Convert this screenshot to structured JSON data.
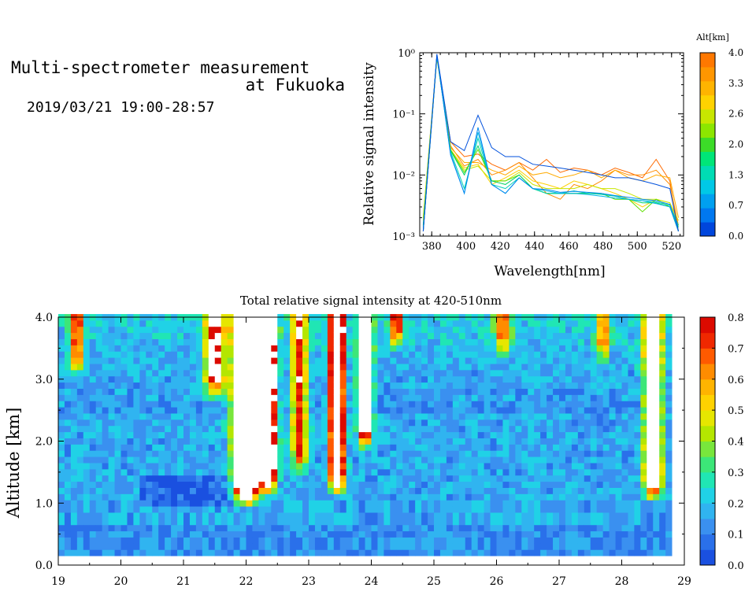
{
  "header": {
    "title_line1": "Multi-spectrometer measurement",
    "title_line2": "at Fukuoka",
    "subtitle": "2019/03/21 19:00-28:57"
  },
  "chart_data": [
    {
      "type": "line",
      "title": "",
      "xlabel": "Wavelength[nm]",
      "ylabel": "Relative signal intensity",
      "xlim": [
        373,
        527
      ],
      "ylim": [
        0.001,
        1
      ],
      "yscale": "log",
      "x": [
        375,
        383,
        391,
        399,
        407,
        415,
        423,
        431,
        439,
        447,
        455,
        463,
        471,
        479,
        487,
        495,
        503,
        511,
        519,
        524
      ],
      "xticks": [
        "380",
        "400",
        "420",
        "440",
        "460",
        "480",
        "500",
        "520"
      ],
      "yticks": [
        "10⁻³",
        "10⁻²",
        "10⁻¹",
        "10⁰"
      ],
      "series": [
        {
          "color": "#ff6a00",
          "values": [
            0.0012,
            0.9,
            0.035,
            0.02,
            0.022,
            0.015,
            0.012,
            0.016,
            0.012,
            0.018,
            0.011,
            0.013,
            0.012,
            0.01,
            0.013,
            0.011,
            0.009,
            0.018,
            0.008,
            0.0012
          ]
        },
        {
          "color": "#ff8c00",
          "values": [
            0.0015,
            0.85,
            0.03,
            0.014,
            0.018,
            0.01,
            0.012,
            0.016,
            0.009,
            0.005,
            0.004,
            0.007,
            0.006,
            0.008,
            0.012,
            0.01,
            0.01,
            0.012,
            0.007,
            0.0015
          ]
        },
        {
          "color": "#ffaa00",
          "values": [
            0.002,
            0.88,
            0.028,
            0.016,
            0.016,
            0.012,
            0.01,
            0.014,
            0.01,
            0.011,
            0.009,
            0.01,
            0.012,
            0.009,
            0.012,
            0.009,
            0.008,
            0.01,
            0.009,
            0.002
          ]
        },
        {
          "color": "#ffd000",
          "values": [
            0.0018,
            0.82,
            0.026,
            0.013,
            0.015,
            0.007,
            0.009,
            0.012,
            0.008,
            0.007,
            0.006,
            0.008,
            0.007,
            0.006,
            0.005,
            0.004,
            0.003,
            0.004,
            0.0035,
            0.0015
          ]
        },
        {
          "color": "#c8e600",
          "values": [
            0.002,
            0.84,
            0.025,
            0.012,
            0.014,
            0.008,
            0.008,
            0.011,
            0.007,
            0.006,
            0.006,
            0.006,
            0.007,
            0.006,
            0.006,
            0.005,
            0.004,
            0.004,
            0.0035,
            0.0018
          ]
        },
        {
          "color": "#5ee000",
          "values": [
            0.0012,
            0.86,
            0.026,
            0.011,
            0.026,
            0.008,
            0.008,
            0.01,
            0.006,
            0.005,
            0.005,
            0.005,
            0.005,
            0.005,
            0.004,
            0.004,
            0.0025,
            0.004,
            0.003,
            0.0012
          ]
        },
        {
          "color": "#00d264",
          "values": [
            0.0015,
            0.88,
            0.025,
            0.01,
            0.03,
            0.008,
            0.007,
            0.01,
            0.006,
            0.005,
            0.005,
            0.005,
            0.005,
            0.005,
            0.0045,
            0.004,
            0.0035,
            0.0035,
            0.003,
            0.0014
          ]
        },
        {
          "color": "#00d2b4",
          "values": [
            0.0014,
            0.9,
            0.024,
            0.006,
            0.04,
            0.007,
            0.006,
            0.009,
            0.006,
            0.005,
            0.005,
            0.0055,
            0.005,
            0.0048,
            0.0045,
            0.004,
            0.0038,
            0.0036,
            0.0032,
            0.0015
          ]
        },
        {
          "color": "#00b4e6",
          "values": [
            0.0012,
            0.9,
            0.022,
            0.005,
            0.05,
            0.007,
            0.005,
            0.009,
            0.006,
            0.0055,
            0.005,
            0.005,
            0.0048,
            0.0045,
            0.0042,
            0.004,
            0.0038,
            0.0034,
            0.003,
            0.0012
          ]
        },
        {
          "color": "#0087f0",
          "values": [
            0.0012,
            0.92,
            0.021,
            0.005,
            0.06,
            0.007,
            0.005,
            0.009,
            0.006,
            0.0058,
            0.0052,
            0.0054,
            0.0052,
            0.005,
            0.0046,
            0.0043,
            0.004,
            0.0038,
            0.0033,
            0.0012
          ]
        },
        {
          "color": "#0050dc",
          "values": [
            0.0012,
            0.95,
            0.035,
            0.025,
            0.095,
            0.028,
            0.02,
            0.02,
            0.015,
            0.014,
            0.013,
            0.012,
            0.011,
            0.01,
            0.009,
            0.009,
            0.008,
            0.007,
            0.006,
            0.0012
          ]
        }
      ],
      "colorbar": {
        "label": "Alt[km]",
        "ticks": [
          "0.0",
          "0.7",
          "1.3",
          "2.0",
          "2.6",
          "3.3",
          "4.0"
        ],
        "colors": [
          "#0046dc",
          "#0078f0",
          "#00a0f0",
          "#00c8e6",
          "#00dcb4",
          "#00e678",
          "#3cdc28",
          "#8ce600",
          "#c8e600",
          "#ffd200",
          "#ffb400",
          "#ff9600",
          "#ff7800"
        ]
      }
    },
    {
      "type": "heatmap",
      "title": "Total relative signal intensity at 420-510nm",
      "xlabel": "",
      "ylabel": "Altitude [km]",
      "xlim": [
        19,
        29
      ],
      "ylim": [
        0,
        4
      ],
      "xticks": [
        "19",
        "20",
        "21",
        "22",
        "23",
        "24",
        "25",
        "26",
        "27",
        "28",
        "29"
      ],
      "yticks": [
        "0.0",
        "1.0",
        "2.0",
        "3.0",
        "4.0"
      ],
      "data_x_range": [
        19,
        28.8
      ],
      "data_y_range": [
        0.15,
        4.0
      ],
      "colorbar": {
        "ticks": [
          "0.0",
          "0.1",
          "0.2",
          "0.3",
          "0.4",
          "0.5",
          "0.6",
          "0.7",
          "0.8"
        ],
        "colors": [
          "#1a50e0",
          "#2a70ea",
          "#3a90f0",
          "#30b4f0",
          "#20d2e6",
          "#20e6b4",
          "#3ce678",
          "#78e63c",
          "#b4e600",
          "#e6e600",
          "#ffd200",
          "#ffb400",
          "#ff8c00",
          "#ff5a00",
          "#f02800",
          "#dc0a00"
        ]
      },
      "plumes": [
        {
          "t": 22.0,
          "w": 0.18,
          "bottom": 0.9,
          "amp": 1.6
        },
        {
          "t": 22.35,
          "w": 0.12,
          "bottom": 1.1,
          "amp": 1.3
        },
        {
          "t": 22.85,
          "w": 0.12,
          "bottom": 1.4,
          "amp": 0.6
        },
        {
          "t": 23.45,
          "w": 0.1,
          "bottom": 1.1,
          "amp": 1.5
        },
        {
          "t": 23.9,
          "w": 0.1,
          "bottom": 1.8,
          "amp": 1.0
        },
        {
          "t": 28.5,
          "w": 0.12,
          "bottom": 1.0,
          "amp": 1.2
        },
        {
          "t": 21.5,
          "w": 0.15,
          "bottom": 2.6,
          "amp": 0.7
        },
        {
          "t": 24.4,
          "w": 0.1,
          "bottom": 3.4,
          "amp": 0.6
        },
        {
          "t": 26.1,
          "w": 0.12,
          "bottom": 3.3,
          "amp": 0.55
        },
        {
          "t": 27.7,
          "w": 0.1,
          "bottom": 3.2,
          "amp": 0.5
        },
        {
          "t": 19.3,
          "w": 0.1,
          "bottom": 3.0,
          "amp": 0.6
        }
      ]
    }
  ]
}
